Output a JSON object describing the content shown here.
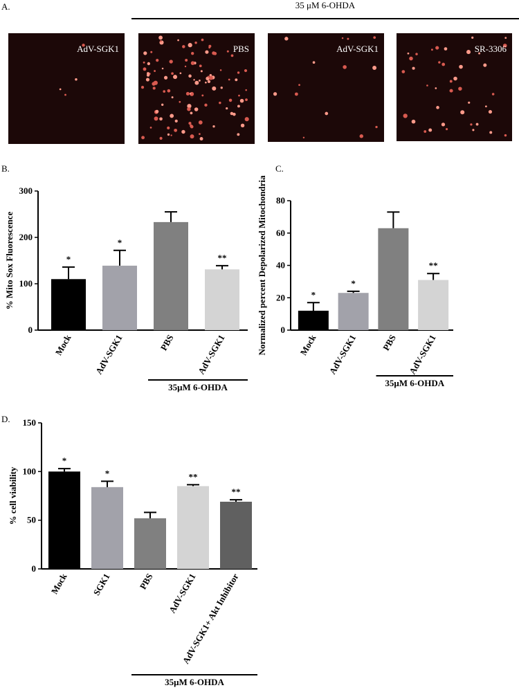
{
  "panel_a": {
    "panel": "A.",
    "header": "35 μM 6-OHDA",
    "images": [
      {
        "label": "AdV-SGK1"
      },
      {
        "label": "PBS"
      },
      {
        "label": "AdV-SGK1"
      },
      {
        "label": "SR-3306"
      }
    ]
  },
  "chart_data": [
    {
      "type": "bar",
      "panel": "B.",
      "y_label": "% Mito Sox Fluorescence",
      "categories": [
        "Mock",
        "AdV-SGK1",
        "PBS",
        "AdV-SGK1"
      ],
      "values": [
        110,
        139,
        233,
        131
      ],
      "errors": [
        26,
        33,
        22,
        8
      ],
      "colors": [
        "#000000",
        "#a2a2aa",
        "#808080",
        "#d4d4d4"
      ],
      "annotations": [
        "*",
        "*",
        null,
        "**"
      ],
      "ylim": [
        0,
        300
      ],
      "yticks": [
        0,
        100,
        200,
        300
      ],
      "group_label": "35μM 6-OHDA"
    },
    {
      "type": "bar",
      "panel": "C.",
      "y_label": "Normalized percent Depolarized Mitochondria",
      "categories": [
        "Mock",
        "AdV-SGK1",
        "PBS",
        "AdV-SGK1"
      ],
      "values": [
        12,
        23,
        63,
        31
      ],
      "errors": [
        5,
        1,
        10,
        4
      ],
      "colors": [
        "#000000",
        "#a2a2aa",
        "#808080",
        "#d4d4d4"
      ],
      "annotations": [
        "*",
        "*",
        null,
        "**"
      ],
      "ylim": [
        0,
        80
      ],
      "yticks": [
        0,
        20,
        40,
        60,
        80
      ],
      "group_label": "35μM 6-OHDA"
    },
    {
      "type": "bar",
      "panel": "D.",
      "y_label": "% cell viability",
      "categories": [
        "Mock",
        "SGK1",
        "PBS",
        "AdV-SGK1",
        "AdV-SGK1+ Akt Inhibitor"
      ],
      "values": [
        100,
        84,
        52,
        85,
        69
      ],
      "errors": [
        3,
        6,
        6,
        1.5,
        2
      ],
      "colors": [
        "#000000",
        "#a2a2aa",
        "#808080",
        "#d4d4d4",
        "#606060"
      ],
      "annotations": [
        "*",
        "*",
        null,
        "**",
        "**"
      ],
      "ylim": [
        0,
        150
      ],
      "yticks": [
        0,
        50,
        100,
        150
      ],
      "group_label": "35μM 6-OHDA"
    }
  ]
}
